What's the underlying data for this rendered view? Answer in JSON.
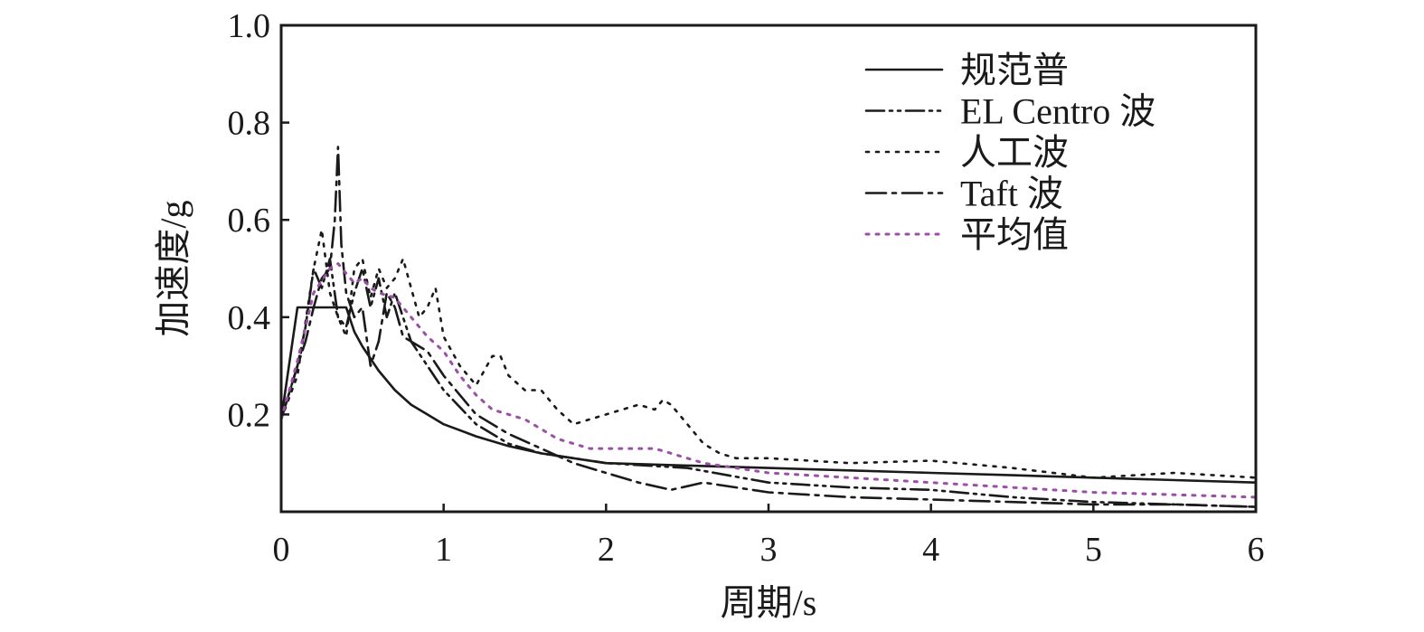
{
  "chart_data": {
    "type": "line",
    "title": "",
    "xlabel": "周期/s",
    "ylabel": "加速度/g",
    "xlim": [
      0,
      6
    ],
    "ylim": [
      0,
      1.0
    ],
    "x_ticks": [
      0,
      1,
      2,
      3,
      4,
      5,
      6
    ],
    "x_tick_labels": [
      "0",
      "1",
      "2",
      "3",
      "4",
      "5",
      "6"
    ],
    "y_ticks": [
      0.2,
      0.4,
      0.6,
      0.8,
      1.0
    ],
    "y_tick_labels": [
      "0.2",
      "0.4",
      "0.6",
      "0.8",
      "1.0"
    ],
    "grid": false,
    "legend_position": "top-right",
    "series": [
      {
        "name": "规范普",
        "color": "#1a1a1a",
        "style": "solid",
        "x": [
          0,
          0.1,
          0.4,
          0.45,
          0.5,
          0.6,
          0.7,
          0.8,
          0.9,
          1.0,
          1.2,
          1.4,
          1.6,
          1.8,
          2.0,
          2.5,
          3.0,
          3.5,
          4.0,
          4.5,
          5.0,
          5.5,
          6.0
        ],
        "y": [
          0.19,
          0.42,
          0.42,
          0.37,
          0.34,
          0.29,
          0.25,
          0.22,
          0.2,
          0.18,
          0.155,
          0.135,
          0.12,
          0.11,
          0.1,
          0.095,
          0.09,
          0.085,
          0.08,
          0.075,
          0.07,
          0.065,
          0.06
        ]
      },
      {
        "name": "EL Centro 波",
        "color": "#1a1a1a",
        "style": "dash-dot-dot",
        "x": [
          0,
          0.1,
          0.15,
          0.2,
          0.25,
          0.3,
          0.35,
          0.4,
          0.45,
          0.5,
          0.55,
          0.6,
          0.65,
          0.7,
          0.8,
          0.9,
          1.0,
          1.2,
          1.4,
          1.6,
          1.8,
          2.0,
          2.5,
          3.0,
          3.5,
          4.0,
          4.5,
          5.0,
          5.5,
          6.0
        ],
        "y": [
          0.19,
          0.3,
          0.38,
          0.5,
          0.46,
          0.52,
          0.4,
          0.38,
          0.45,
          0.5,
          0.42,
          0.48,
          0.4,
          0.45,
          0.35,
          0.3,
          0.25,
          0.18,
          0.14,
          0.12,
          0.11,
          0.1,
          0.09,
          0.06,
          0.05,
          0.045,
          0.03,
          0.02,
          0.015,
          0.01
        ]
      },
      {
        "name": "人工波",
        "color": "#1a1a1a",
        "style": "dotted",
        "x": [
          0,
          0.1,
          0.2,
          0.25,
          0.3,
          0.35,
          0.4,
          0.45,
          0.5,
          0.55,
          0.6,
          0.65,
          0.7,
          0.75,
          0.8,
          0.85,
          0.9,
          0.95,
          1.0,
          1.1,
          1.2,
          1.3,
          1.35,
          1.4,
          1.5,
          1.6,
          1.7,
          1.8,
          1.9,
          2.0,
          2.1,
          2.2,
          2.3,
          2.35,
          2.4,
          2.5,
          2.6,
          2.7,
          2.8,
          3.0,
          3.5,
          4.0,
          4.5,
          5.0,
          5.5,
          6.0
        ],
        "y": [
          0.19,
          0.28,
          0.5,
          0.58,
          0.45,
          0.4,
          0.36,
          0.5,
          0.52,
          0.44,
          0.5,
          0.46,
          0.48,
          0.52,
          0.46,
          0.4,
          0.42,
          0.46,
          0.36,
          0.3,
          0.26,
          0.32,
          0.32,
          0.28,
          0.25,
          0.25,
          0.21,
          0.18,
          0.19,
          0.2,
          0.21,
          0.22,
          0.21,
          0.23,
          0.22,
          0.18,
          0.14,
          0.12,
          0.11,
          0.11,
          0.1,
          0.105,
          0.09,
          0.07,
          0.08,
          0.07
        ]
      },
      {
        "name": "Taft 波",
        "color": "#1a1a1a",
        "style": "dash-dot",
        "x": [
          0,
          0.1,
          0.15,
          0.2,
          0.25,
          0.3,
          0.33,
          0.35,
          0.37,
          0.4,
          0.45,
          0.5,
          0.55,
          0.6,
          0.65,
          0.7,
          0.75,
          0.8,
          0.9,
          1.0,
          1.2,
          1.4,
          1.6,
          1.8,
          2.0,
          2.2,
          2.4,
          2.6,
          2.8,
          3.0,
          3.5,
          4.0,
          4.5,
          5.0,
          5.5,
          6.0
        ],
        "y": [
          0.19,
          0.3,
          0.35,
          0.42,
          0.48,
          0.5,
          0.6,
          0.75,
          0.55,
          0.45,
          0.4,
          0.42,
          0.3,
          0.35,
          0.45,
          0.42,
          0.36,
          0.35,
          0.33,
          0.28,
          0.2,
          0.16,
          0.13,
          0.1,
          0.08,
          0.06,
          0.045,
          0.06,
          0.05,
          0.04,
          0.03,
          0.025,
          0.02,
          0.015,
          0.015,
          0.01
        ]
      },
      {
        "name": "平均值",
        "color": "#9b4fa6",
        "style": "dotted",
        "x": [
          0,
          0.1,
          0.2,
          0.3,
          0.35,
          0.4,
          0.45,
          0.5,
          0.55,
          0.6,
          0.7,
          0.8,
          0.9,
          1.0,
          1.1,
          1.2,
          1.3,
          1.4,
          1.5,
          1.6,
          1.7,
          1.8,
          1.9,
          2.0,
          2.2,
          2.3,
          2.4,
          2.5,
          2.6,
          2.8,
          3.0,
          3.5,
          4.0,
          4.5,
          5.0,
          5.5,
          6.0
        ],
        "y": [
          0.19,
          0.31,
          0.45,
          0.5,
          0.51,
          0.49,
          0.47,
          0.48,
          0.46,
          0.45,
          0.44,
          0.4,
          0.36,
          0.33,
          0.28,
          0.24,
          0.21,
          0.2,
          0.19,
          0.17,
          0.15,
          0.14,
          0.13,
          0.13,
          0.13,
          0.13,
          0.12,
          0.11,
          0.1,
          0.09,
          0.08,
          0.07,
          0.06,
          0.05,
          0.04,
          0.035,
          0.03
        ]
      }
    ]
  }
}
